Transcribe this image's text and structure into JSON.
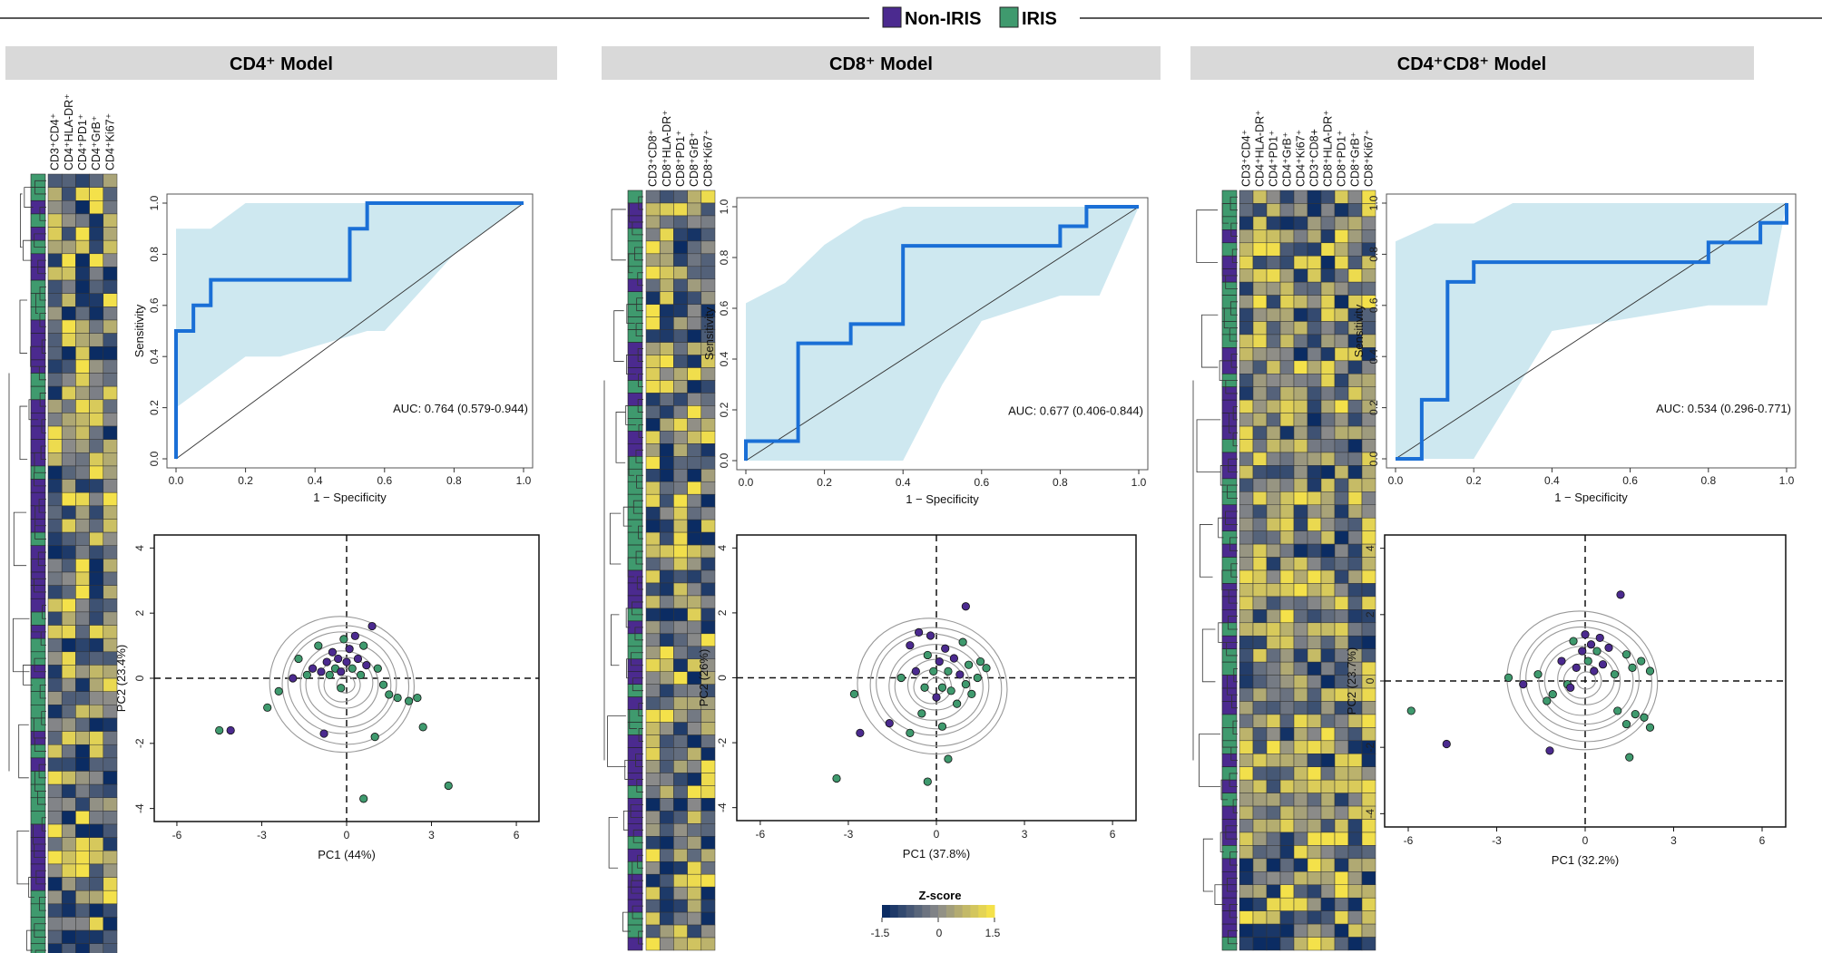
{
  "legend": {
    "items": [
      {
        "label": "Non-IRIS",
        "color": "#4b2a8f"
      },
      {
        "label": "IRIS",
        "color": "#3f9a6e"
      }
    ]
  },
  "zscore": {
    "title": "Z-score",
    "ticks": [
      "-1.5",
      "0",
      "1.5"
    ],
    "low_color": "#0b2c63",
    "mid_color": "#8a8a8a",
    "high_color": "#f4e14a"
  },
  "chart_data": [
    {
      "type": "heatmap+roc+scatter",
      "title": "CD4⁺ Model",
      "heatmap": {
        "columns": [
          "CD3⁺CD4⁺",
          "CD4⁺HLA-DR⁺",
          "CD4⁺PD1⁺",
          "CD4⁺GrB⁺",
          "CD4⁺Ki67⁺"
        ],
        "n_rows": 60
      },
      "roc": {
        "type": "line",
        "xlabel": "1 − Specificity",
        "ylabel": "Sensitivity",
        "xlim": [
          0,
          1
        ],
        "ylim": [
          0,
          1
        ],
        "xticks": [
          "0.0",
          "0.2",
          "0.4",
          "0.6",
          "0.8",
          "1.0"
        ],
        "yticks": [
          "0.0",
          "0.2",
          "0.4",
          "0.6",
          "0.8",
          "1.0"
        ],
        "auc_text": "AUC: 0.764 (0.579-0.944)",
        "curve": [
          [
            0,
            0
          ],
          [
            0,
            0.5
          ],
          [
            0.05,
            0.5
          ],
          [
            0.05,
            0.6
          ],
          [
            0.1,
            0.6
          ],
          [
            0.1,
            0.7
          ],
          [
            0.5,
            0.7
          ],
          [
            0.5,
            0.9
          ],
          [
            0.55,
            0.9
          ],
          [
            0.55,
            1.0
          ],
          [
            1,
            1
          ]
        ],
        "ci_upper": [
          [
            0,
            0.9
          ],
          [
            0.1,
            0.9
          ],
          [
            0.2,
            1.0
          ],
          [
            0.8,
            1.0
          ],
          [
            1,
            1
          ]
        ],
        "ci_lower": [
          [
            0,
            0.2
          ],
          [
            0.1,
            0.3
          ],
          [
            0.2,
            0.4
          ],
          [
            0.3,
            0.4
          ],
          [
            0.55,
            0.5
          ],
          [
            0.6,
            0.5
          ],
          [
            0.8,
            0.8
          ],
          [
            1,
            1
          ]
        ]
      },
      "pca": {
        "type": "scatter",
        "xlabel": "PC1 (44%)",
        "ylabel": "PC2 (23.4%)",
        "xlim": [
          -6.8,
          6.8
        ],
        "ylim": [
          -4.4,
          4.4
        ],
        "xticks": [
          "-6",
          "-3",
          "0",
          "3",
          "6"
        ],
        "yticks": [
          "-4",
          "-2",
          "0",
          "2",
          "4"
        ],
        "points": [
          {
            "x": -4.5,
            "y": -1.6,
            "g": "IRIS"
          },
          {
            "x": -4.1,
            "y": -1.6,
            "g": "Non-IRIS"
          },
          {
            "x": -2.8,
            "y": -0.9,
            "g": "IRIS"
          },
          {
            "x": -2.4,
            "y": -0.4,
            "g": "IRIS"
          },
          {
            "x": -1.9,
            "y": 0.0,
            "g": "Non-IRIS"
          },
          {
            "x": -1.7,
            "y": 0.6,
            "g": "IRIS"
          },
          {
            "x": -1.4,
            "y": 0.1,
            "g": "IRIS"
          },
          {
            "x": -1.2,
            "y": 0.3,
            "g": "Non-IRIS"
          },
          {
            "x": -1.0,
            "y": 1.0,
            "g": "IRIS"
          },
          {
            "x": -0.9,
            "y": 0.2,
            "g": "Non-IRIS"
          },
          {
            "x": -0.7,
            "y": 0.5,
            "g": "Non-IRIS"
          },
          {
            "x": -0.6,
            "y": 0.1,
            "g": "IRIS"
          },
          {
            "x": -0.5,
            "y": 0.8,
            "g": "Non-IRIS"
          },
          {
            "x": -0.4,
            "y": 0.3,
            "g": "IRIS"
          },
          {
            "x": -0.3,
            "y": 0.6,
            "g": "Non-IRIS"
          },
          {
            "x": -0.2,
            "y": 0.2,
            "g": "Non-IRIS"
          },
          {
            "x": -0.1,
            "y": 1.2,
            "g": "IRIS"
          },
          {
            "x": 0.0,
            "y": 0.5,
            "g": "Non-IRIS"
          },
          {
            "x": 0.1,
            "y": 0.9,
            "g": "Non-IRIS"
          },
          {
            "x": 0.2,
            "y": 0.3,
            "g": "IRIS"
          },
          {
            "x": 0.3,
            "y": 1.3,
            "g": "Non-IRIS"
          },
          {
            "x": 0.4,
            "y": 0.6,
            "g": "Non-IRIS"
          },
          {
            "x": 0.5,
            "y": 0.1,
            "g": "IRIS"
          },
          {
            "x": 0.6,
            "y": 1.0,
            "g": "IRIS"
          },
          {
            "x": 0.7,
            "y": 0.4,
            "g": "Non-IRIS"
          },
          {
            "x": 0.9,
            "y": 1.6,
            "g": "Non-IRIS"
          },
          {
            "x": 1.1,
            "y": 0.3,
            "g": "IRIS"
          },
          {
            "x": 1.3,
            "y": -0.2,
            "g": "IRIS"
          },
          {
            "x": 1.5,
            "y": -0.5,
            "g": "IRIS"
          },
          {
            "x": 1.8,
            "y": -0.6,
            "g": "IRIS"
          },
          {
            "x": 2.2,
            "y": -0.7,
            "g": "IRIS"
          },
          {
            "x": 2.5,
            "y": -0.6,
            "g": "IRIS"
          },
          {
            "x": 2.7,
            "y": -1.5,
            "g": "IRIS"
          },
          {
            "x": -0.8,
            "y": -1.7,
            "g": "Non-IRIS"
          },
          {
            "x": 1.0,
            "y": -1.8,
            "g": "IRIS"
          },
          {
            "x": 0.6,
            "y": -3.7,
            "g": "IRIS"
          },
          {
            "x": 3.6,
            "y": -3.3,
            "g": "IRIS"
          },
          {
            "x": -0.2,
            "y": -0.3,
            "g": "IRIS"
          }
        ]
      }
    },
    {
      "type": "heatmap+roc+scatter",
      "title": "CD8⁺ Model",
      "heatmap": {
        "columns": [
          "CD3⁺CD8⁺",
          "CD8⁺HLA-DR⁺",
          "CD8⁺PD1⁺",
          "CD8⁺GrB⁺",
          "CD8⁺Ki67⁺"
        ],
        "n_rows": 60
      },
      "roc": {
        "type": "line",
        "xlabel": "1 − Specificity",
        "ylabel": "Sensitivity",
        "xlim": [
          0,
          1
        ],
        "ylim": [
          0,
          1
        ],
        "xticks": [
          "0.0",
          "0.2",
          "0.4",
          "0.6",
          "0.8",
          "1.0"
        ],
        "yticks": [
          "0.0",
          "0.2",
          "0.4",
          "0.6",
          "0.8",
          "1.0"
        ],
        "auc_text": "AUC: 0.677 (0.406-0.844)",
        "curve": [
          [
            0,
            0
          ],
          [
            0,
            0.077
          ],
          [
            0.133,
            0.077
          ],
          [
            0.133,
            0.462
          ],
          [
            0.267,
            0.462
          ],
          [
            0.267,
            0.538
          ],
          [
            0.4,
            0.538
          ],
          [
            0.4,
            0.846
          ],
          [
            0.8,
            0.846
          ],
          [
            0.8,
            0.923
          ],
          [
            0.867,
            0.923
          ],
          [
            0.867,
            1.0
          ],
          [
            1,
            1
          ]
        ],
        "ci_upper": [
          [
            0,
            0.62
          ],
          [
            0.1,
            0.7
          ],
          [
            0.2,
            0.85
          ],
          [
            0.3,
            0.95
          ],
          [
            0.4,
            1.0
          ],
          [
            1,
            1
          ]
        ],
        "ci_lower": [
          [
            0,
            0
          ],
          [
            0.4,
            0
          ],
          [
            0.5,
            0.3
          ],
          [
            0.6,
            0.55
          ],
          [
            0.8,
            0.65
          ],
          [
            0.9,
            0.65
          ],
          [
            1,
            1
          ]
        ]
      },
      "pca": {
        "type": "scatter",
        "xlabel": "PC1 (37.8%)",
        "ylabel": "PC2 (26%)",
        "xlim": [
          -6.8,
          6.8
        ],
        "ylim": [
          -4.4,
          4.4
        ],
        "xticks": [
          "-6",
          "-3",
          "0",
          "3",
          "6"
        ],
        "yticks": [
          "-4",
          "-2",
          "0",
          "2",
          "4"
        ],
        "points": [
          {
            "x": -3.4,
            "y": -3.1,
            "g": "IRIS"
          },
          {
            "x": -2.6,
            "y": -1.7,
            "g": "Non-IRIS"
          },
          {
            "x": -2.8,
            "y": -0.5,
            "g": "IRIS"
          },
          {
            "x": -1.6,
            "y": -1.4,
            "g": "Non-IRIS"
          },
          {
            "x": -0.9,
            "y": -1.7,
            "g": "IRIS"
          },
          {
            "x": -0.3,
            "y": -3.2,
            "g": "IRIS"
          },
          {
            "x": 0.4,
            "y": -2.5,
            "g": "IRIS"
          },
          {
            "x": -1.2,
            "y": 0.0,
            "g": "IRIS"
          },
          {
            "x": -0.9,
            "y": 1.0,
            "g": "Non-IRIS"
          },
          {
            "x": -0.7,
            "y": 0.2,
            "g": "Non-IRIS"
          },
          {
            "x": -0.6,
            "y": 1.4,
            "g": "Non-IRIS"
          },
          {
            "x": -0.4,
            "y": -0.3,
            "g": "IRIS"
          },
          {
            "x": -0.3,
            "y": 0.7,
            "g": "IRIS"
          },
          {
            "x": -0.2,
            "y": 1.3,
            "g": "Non-IRIS"
          },
          {
            "x": -0.1,
            "y": 0.2,
            "g": "IRIS"
          },
          {
            "x": 0.0,
            "y": -0.6,
            "g": "Non-IRIS"
          },
          {
            "x": 0.1,
            "y": 0.5,
            "g": "Non-IRIS"
          },
          {
            "x": 0.2,
            "y": -0.3,
            "g": "IRIS"
          },
          {
            "x": 0.3,
            "y": 0.9,
            "g": "Non-IRIS"
          },
          {
            "x": 0.4,
            "y": 0.2,
            "g": "IRIS"
          },
          {
            "x": 0.5,
            "y": -0.4,
            "g": "IRIS"
          },
          {
            "x": 0.6,
            "y": 0.6,
            "g": "Non-IRIS"
          },
          {
            "x": 0.7,
            "y": -0.8,
            "g": "IRIS"
          },
          {
            "x": 0.8,
            "y": 0.1,
            "g": "Non-IRIS"
          },
          {
            "x": 0.9,
            "y": 1.1,
            "g": "IRIS"
          },
          {
            "x": 1.0,
            "y": -0.2,
            "g": "IRIS"
          },
          {
            "x": 1.1,
            "y": 0.4,
            "g": "IRIS"
          },
          {
            "x": 1.2,
            "y": -0.5,
            "g": "IRIS"
          },
          {
            "x": 1.4,
            "y": 0.0,
            "g": "IRIS"
          },
          {
            "x": 1.5,
            "y": 0.5,
            "g": "IRIS"
          },
          {
            "x": 1.0,
            "y": 2.2,
            "g": "Non-IRIS"
          },
          {
            "x": -0.5,
            "y": -1.1,
            "g": "IRIS"
          },
          {
            "x": 0.2,
            "y": -1.5,
            "g": "IRIS"
          },
          {
            "x": 1.7,
            "y": 0.3,
            "g": "IRIS"
          }
        ]
      }
    },
    {
      "type": "heatmap+roc+scatter",
      "title": "CD4⁺CD8⁺ Model",
      "heatmap": {
        "columns": [
          "CD3⁺CD4⁺",
          "CD4⁺HLA-DR⁺",
          "CD4⁺PD1⁺",
          "CD4⁺GrB⁺",
          "CD4⁺Ki67⁺",
          "CD3⁺CD8+",
          "CD8⁺HLA-DR⁺",
          "CD8⁺PD1⁺",
          "CD8⁺GrB⁺",
          "CD8⁺Ki67⁺"
        ],
        "n_rows": 58
      },
      "roc": {
        "type": "line",
        "xlabel": "1 − Specificity",
        "ylabel": "Sensitivity",
        "xlim": [
          0,
          1
        ],
        "ylim": [
          0,
          1
        ],
        "xticks": [
          "0.0",
          "0.2",
          "0.4",
          "0.6",
          "0.8",
          "1.0"
        ],
        "yticks": [
          "0.0",
          "0.2",
          "0.4",
          "0.6",
          "0.8",
          "1.0"
        ],
        "auc_text": "AUC: 0.534 (0.296-0.771)",
        "curve": [
          [
            0,
            0
          ],
          [
            0.067,
            0
          ],
          [
            0.067,
            0.231
          ],
          [
            0.133,
            0.231
          ],
          [
            0.133,
            0.692
          ],
          [
            0.2,
            0.692
          ],
          [
            0.2,
            0.769
          ],
          [
            0.8,
            0.769
          ],
          [
            0.8,
            0.846
          ],
          [
            0.933,
            0.846
          ],
          [
            0.933,
            0.923
          ],
          [
            1,
            0.923
          ],
          [
            1,
            1
          ]
        ],
        "ci_upper": [
          [
            0,
            0.85
          ],
          [
            0.1,
            0.92
          ],
          [
            0.2,
            0.92
          ],
          [
            0.3,
            1.0
          ],
          [
            0.8,
            1.0
          ],
          [
            1,
            1
          ]
        ],
        "ci_lower": [
          [
            0,
            0
          ],
          [
            0.2,
            0
          ],
          [
            0.3,
            0.25
          ],
          [
            0.4,
            0.5
          ],
          [
            0.6,
            0.55
          ],
          [
            0.8,
            0.6
          ],
          [
            0.95,
            0.6
          ],
          [
            1,
            1
          ]
        ]
      },
      "pca": {
        "type": "scatter",
        "xlabel": "PC1 (32.2%)",
        "ylabel": "PC2 (23.7%)",
        "xlim": [
          -6.8,
          6.8
        ],
        "ylim": [
          -4.4,
          4.4
        ],
        "xticks": [
          "-6",
          "-3",
          "0",
          "3",
          "6"
        ],
        "yticks": [
          "-4",
          "-2",
          "0",
          "2",
          "4"
        ],
        "points": [
          {
            "x": -5.9,
            "y": -0.9,
            "g": "IRIS"
          },
          {
            "x": -4.7,
            "y": -1.9,
            "g": "Non-IRIS"
          },
          {
            "x": -2.6,
            "y": 0.1,
            "g": "IRIS"
          },
          {
            "x": -2.1,
            "y": -0.1,
            "g": "Non-IRIS"
          },
          {
            "x": -1.6,
            "y": 0.2,
            "g": "IRIS"
          },
          {
            "x": -1.3,
            "y": -0.6,
            "g": "IRIS"
          },
          {
            "x": -1.1,
            "y": -0.4,
            "g": "IRIS"
          },
          {
            "x": -0.8,
            "y": 0.6,
            "g": "Non-IRIS"
          },
          {
            "x": -0.6,
            "y": -0.1,
            "g": "IRIS"
          },
          {
            "x": -0.4,
            "y": 1.2,
            "g": "IRIS"
          },
          {
            "x": -0.3,
            "y": 0.4,
            "g": "Non-IRIS"
          },
          {
            "x": -0.1,
            "y": 0.9,
            "g": "Non-IRIS"
          },
          {
            "x": 0.0,
            "y": 1.4,
            "g": "Non-IRIS"
          },
          {
            "x": 0.1,
            "y": 0.6,
            "g": "IRIS"
          },
          {
            "x": 0.2,
            "y": 1.1,
            "g": "Non-IRIS"
          },
          {
            "x": 0.3,
            "y": 0.3,
            "g": "Non-IRIS"
          },
          {
            "x": 0.4,
            "y": 0.9,
            "g": "IRIS"
          },
          {
            "x": 0.5,
            "y": 1.3,
            "g": "Non-IRIS"
          },
          {
            "x": 0.6,
            "y": 0.5,
            "g": "Non-IRIS"
          },
          {
            "x": 0.8,
            "y": 1.0,
            "g": "Non-IRIS"
          },
          {
            "x": 1.0,
            "y": 0.2,
            "g": "IRIS"
          },
          {
            "x": 1.2,
            "y": 2.6,
            "g": "Non-IRIS"
          },
          {
            "x": 1.4,
            "y": 0.8,
            "g": "IRIS"
          },
          {
            "x": 1.6,
            "y": 0.4,
            "g": "IRIS"
          },
          {
            "x": 1.9,
            "y": 0.6,
            "g": "IRIS"
          },
          {
            "x": 2.2,
            "y": 0.3,
            "g": "IRIS"
          },
          {
            "x": 1.4,
            "y": -1.3,
            "g": "IRIS"
          },
          {
            "x": 1.7,
            "y": -1.0,
            "g": "IRIS"
          },
          {
            "x": 2.0,
            "y": -1.1,
            "g": "IRIS"
          },
          {
            "x": 2.2,
            "y": -1.4,
            "g": "IRIS"
          },
          {
            "x": 1.1,
            "y": -0.9,
            "g": "IRIS"
          },
          {
            "x": 1.5,
            "y": -2.3,
            "g": "IRIS"
          },
          {
            "x": -1.2,
            "y": -2.1,
            "g": "Non-IRIS"
          },
          {
            "x": -0.5,
            "y": -0.2,
            "g": "Non-IRIS"
          }
        ]
      }
    }
  ]
}
